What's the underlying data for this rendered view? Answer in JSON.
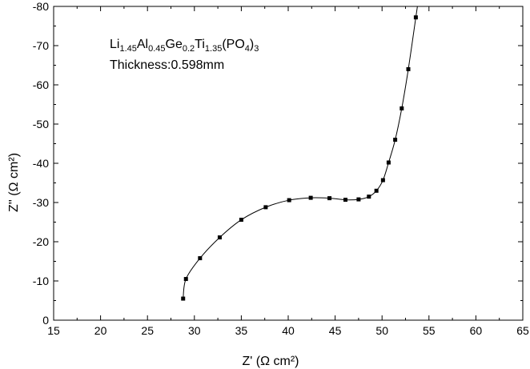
{
  "chart_data": {
    "type": "scatter",
    "title": "",
    "xlabel": "Z' (Ω cm²)",
    "ylabel": "Z'' (Ω cm²)",
    "xlim": [
      15,
      65
    ],
    "ylim": [
      0,
      -80
    ],
    "x_ticks": [
      15,
      20,
      25,
      30,
      35,
      40,
      45,
      50,
      55,
      60,
      65
    ],
    "y_ticks": [
      0,
      -10,
      -20,
      -30,
      -40,
      -50,
      -60,
      -70,
      -80
    ],
    "tick_labels_x": [
      "15",
      "20",
      "25",
      "30",
      "35",
      "40",
      "45",
      "50",
      "55",
      "60",
      "65"
    ],
    "tick_labels_y": [
      "0",
      "-10",
      "-20",
      "-30",
      "-40",
      "-50",
      "-60",
      "-70",
      "-80"
    ],
    "grid": false,
    "series": [
      {
        "x": [
          28.8,
          29.1,
          30.6,
          32.7,
          35.0,
          37.6,
          40.1,
          42.4,
          44.4,
          46.1,
          47.5,
          48.6,
          49.4,
          50.1,
          50.7,
          51.4,
          52.1,
          52.8,
          53.6
        ],
        "y": [
          -5.5,
          -10.5,
          -15.8,
          -21.1,
          -25.6,
          -28.8,
          -30.6,
          -31.2,
          -31.1,
          -30.7,
          -30.8,
          -31.5,
          -33.0,
          -35.7,
          -40.2,
          -46.0,
          -54.0,
          -64.0,
          -77.2
        ],
        "color": "#000000"
      }
    ],
    "annotations": {
      "formula": {
        "parts": [
          {
            "text": "Li",
            "sub": false
          },
          {
            "text": "1.45",
            "sub": true
          },
          {
            "text": "Al",
            "sub": false
          },
          {
            "text": "0.45",
            "sub": true
          },
          {
            "text": "Ge",
            "sub": false
          },
          {
            "text": "0.2",
            "sub": true
          },
          {
            "text": "Ti",
            "sub": false
          },
          {
            "text": "1.35",
            "sub": true
          },
          {
            "text": "(PO",
            "sub": false
          },
          {
            "text": "4",
            "sub": true
          },
          {
            "text": ")",
            "sub": false
          },
          {
            "text": "3",
            "sub": true
          }
        ]
      },
      "thickness": "Thickness:0.598mm"
    }
  }
}
